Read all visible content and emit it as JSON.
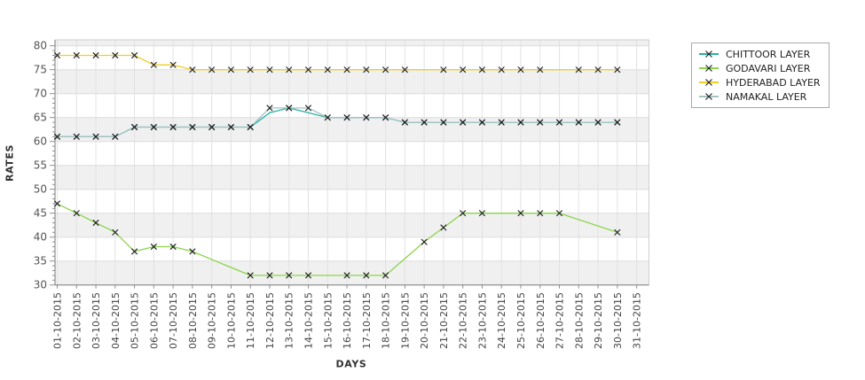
{
  "chart_data": {
    "type": "line",
    "title": "",
    "xlabel": "DAYS",
    "ylabel": "RATES",
    "ylim": [
      30,
      80
    ],
    "ytick_step": 5,
    "y_ticks": [
      30,
      35,
      40,
      45,
      50,
      55,
      60,
      65,
      70,
      75,
      80
    ],
    "grid": true,
    "plot_bands": "alternating gray/white every 5 units",
    "legend_position": "top-right-outside",
    "marker": "black-x",
    "x_categories": [
      "01-10-2015",
      "02-10-2015",
      "03-10-2015",
      "04-10-2015",
      "05-10-2015",
      "06-10-2015",
      "07-10-2015",
      "08-10-2015",
      "09-10-2015",
      "10-10-2015",
      "11-10-2015",
      "12-10-2015",
      "13-10-2015",
      "14-10-2015",
      "15-10-2015",
      "16-10-2015",
      "17-10-2015",
      "18-10-2015",
      "19-10-2015",
      "20-10-2015",
      "21-10-2015",
      "22-10-2015",
      "23-10-2015",
      "24-10-2015",
      "25-10-2015",
      "26-10-2015",
      "27-10-2015",
      "28-10-2015",
      "29-10-2015",
      "30-10-2015",
      "31-10-2015"
    ],
    "series": [
      {
        "name": "CHITTOOR LAYER",
        "color": "#29b0a3",
        "points": [
          [
            1,
            61,
            1
          ],
          [
            2,
            61,
            1
          ],
          [
            3,
            61,
            1
          ],
          [
            4,
            61,
            1
          ],
          [
            5,
            63,
            1
          ],
          [
            6,
            63,
            1
          ],
          [
            7,
            63,
            1
          ],
          [
            8,
            63,
            1
          ],
          [
            9,
            63,
            1
          ],
          [
            10,
            63,
            1
          ],
          [
            11,
            63,
            1
          ],
          [
            12,
            66,
            0
          ],
          [
            13,
            67,
            1
          ],
          [
            14,
            66,
            0
          ],
          [
            15,
            65,
            1
          ],
          [
            16,
            65,
            1
          ],
          [
            17,
            65,
            1
          ],
          [
            18,
            65,
            1
          ],
          [
            19,
            64,
            1
          ],
          [
            20,
            64,
            1
          ],
          [
            21,
            64,
            1
          ],
          [
            22,
            64,
            1
          ],
          [
            23,
            64,
            1
          ],
          [
            24,
            64,
            1
          ],
          [
            25,
            64,
            1
          ],
          [
            26,
            64,
            1
          ],
          [
            27,
            64,
            1
          ],
          [
            28,
            64,
            1
          ],
          [
            29,
            64,
            1
          ],
          [
            30,
            64,
            1
          ]
        ]
      },
      {
        "name": "GODAVARI LAYER",
        "color": "#8bd54b",
        "points": [
          [
            1,
            47,
            1
          ],
          [
            2,
            45,
            1
          ],
          [
            3,
            43,
            1
          ],
          [
            4,
            41,
            1
          ],
          [
            5,
            37,
            1
          ],
          [
            6,
            38,
            1
          ],
          [
            7,
            38,
            1
          ],
          [
            8,
            37,
            1
          ],
          [
            11,
            32,
            1
          ],
          [
            12,
            32,
            1
          ],
          [
            13,
            32,
            1
          ],
          [
            14,
            32,
            1
          ],
          [
            16,
            32,
            1
          ],
          [
            17,
            32,
            1
          ],
          [
            18,
            32,
            1
          ],
          [
            20,
            39,
            1
          ],
          [
            21,
            42,
            1
          ],
          [
            22,
            45,
            1
          ],
          [
            23,
            45,
            1
          ],
          [
            25,
            45,
            1
          ],
          [
            26,
            45,
            1
          ],
          [
            27,
            45,
            1
          ],
          [
            30,
            41,
            1
          ]
        ]
      },
      {
        "name": "HYDERABAD LAYER",
        "color": "#f0cf26",
        "points": [
          [
            1,
            78,
            1
          ],
          [
            2,
            78,
            1
          ],
          [
            3,
            78,
            1
          ],
          [
            4,
            78,
            1
          ],
          [
            5,
            78,
            1
          ],
          [
            6,
            76,
            1
          ],
          [
            7,
            76,
            1
          ],
          [
            8,
            75,
            1
          ],
          [
            9,
            75,
            1
          ],
          [
            10,
            75,
            1
          ],
          [
            11,
            75,
            1
          ],
          [
            12,
            75,
            1
          ],
          [
            13,
            75,
            1
          ],
          [
            14,
            75,
            1
          ],
          [
            15,
            75,
            1
          ],
          [
            16,
            75,
            1
          ],
          [
            17,
            75,
            1
          ],
          [
            18,
            75,
            1
          ],
          [
            19,
            75,
            1
          ],
          [
            20,
            75,
            0
          ],
          [
            21,
            75,
            1
          ],
          [
            22,
            75,
            1
          ],
          [
            23,
            75,
            1
          ],
          [
            24,
            75,
            1
          ],
          [
            25,
            75,
            1
          ],
          [
            26,
            75,
            1
          ],
          [
            27,
            75,
            0
          ],
          [
            28,
            75,
            1
          ],
          [
            29,
            75,
            1
          ],
          [
            30,
            75,
            1
          ]
        ]
      },
      {
        "name": "NAMAKAL LAYER",
        "color": "#a3c3c0",
        "points": [
          [
            1,
            61,
            1
          ],
          [
            2,
            61,
            1
          ],
          [
            3,
            61,
            1
          ],
          [
            4,
            61,
            1
          ],
          [
            5,
            63,
            1
          ],
          [
            6,
            63,
            1
          ],
          [
            7,
            63,
            1
          ],
          [
            8,
            63,
            1
          ],
          [
            9,
            63,
            1
          ],
          [
            10,
            63,
            1
          ],
          [
            11,
            63,
            1
          ],
          [
            12,
            67,
            1
          ],
          [
            13,
            67,
            1
          ],
          [
            14,
            67,
            1
          ],
          [
            15,
            65,
            1
          ],
          [
            16,
            65,
            1
          ],
          [
            17,
            65,
            1
          ],
          [
            18,
            65,
            1
          ],
          [
            19,
            64,
            1
          ],
          [
            20,
            64,
            1
          ],
          [
            21,
            64,
            1
          ],
          [
            22,
            64,
            1
          ],
          [
            23,
            64,
            1
          ],
          [
            24,
            64,
            1
          ],
          [
            25,
            64,
            1
          ],
          [
            26,
            64,
            1
          ],
          [
            27,
            64,
            1
          ],
          [
            28,
            64,
            1
          ],
          [
            29,
            64,
            1
          ],
          [
            30,
            64,
            1
          ]
        ]
      }
    ],
    "colors": {
      "band_gray": "#f0f0f0",
      "grid": "#e2e2e2",
      "axis": "#8f8f8f",
      "tick_text": "#555555",
      "marker": "#1b1b1b"
    }
  }
}
